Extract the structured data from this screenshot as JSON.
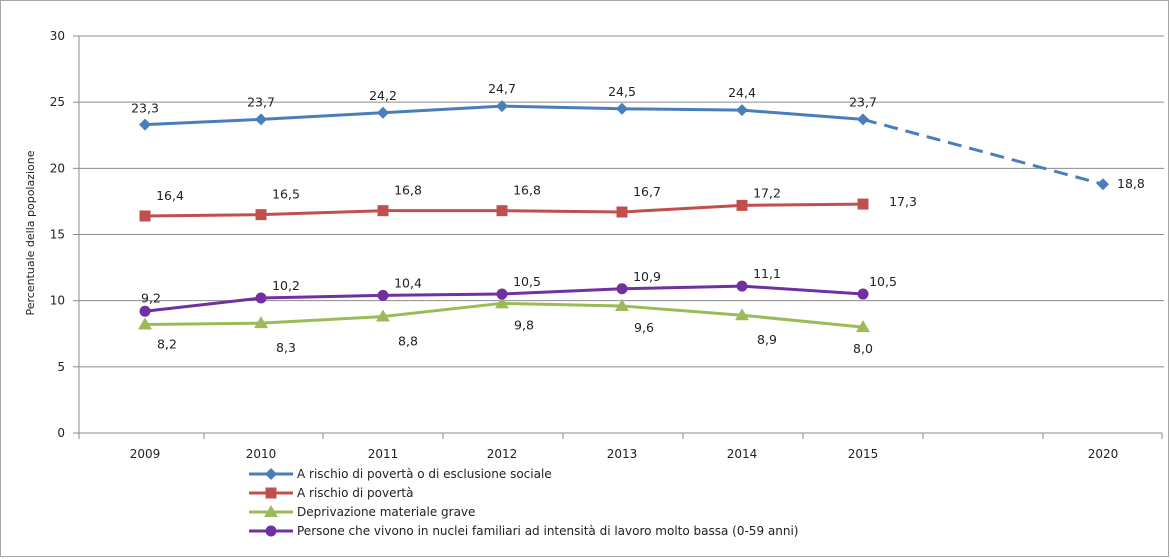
{
  "chart_data": {
    "type": "line",
    "title": "",
    "xlabel": "",
    "ylabel": "Percentuale della popolazione",
    "ylim": [
      0,
      30
    ],
    "yticks": [
      0,
      5,
      10,
      15,
      20,
      25,
      30
    ],
    "categories": [
      "2009",
      "2010",
      "2011",
      "2012",
      "2013",
      "2014",
      "2015",
      "2020"
    ],
    "grid": "horizontal",
    "legend_position": "bottom-left",
    "series": [
      {
        "name": "A rischio di povertà o di esclusione sociale",
        "color": "#4a7ebb",
        "marker": "diamond",
        "values": [
          23.3,
          23.7,
          24.2,
          24.7,
          24.5,
          24.4,
          23.7,
          null
        ],
        "labels": [
          "23,3",
          "23,7",
          "24,2",
          "24,7",
          "24,5",
          "24,4",
          "23,7",
          null
        ],
        "target": {
          "category": "2020",
          "value": 18.8,
          "label": "18,8",
          "line": "dashed"
        }
      },
      {
        "name": "A rischio di povertà",
        "color": "#c0504d",
        "marker": "square",
        "values": [
          16.4,
          16.5,
          16.8,
          16.8,
          16.7,
          17.2,
          17.3,
          null
        ],
        "labels": [
          "16,4",
          "16,5",
          "16,8",
          "16,8",
          "16,7",
          "17,2",
          "17,3",
          null
        ]
      },
      {
        "name": "Deprivazione materiale grave",
        "color": "#9bbb59",
        "marker": "triangle",
        "values": [
          8.2,
          8.3,
          8.8,
          9.8,
          9.6,
          8.9,
          8.0,
          null
        ],
        "labels": [
          "8,2",
          "8,3",
          "8,8",
          "9,8",
          "9,6",
          "8,9",
          "8,0",
          null
        ]
      },
      {
        "name": "Persone che vivono in nuclei familiari ad intensità di lavoro molto bassa (0-59 anni)",
        "color": "#7030a0",
        "marker": "circle",
        "values": [
          9.2,
          10.2,
          10.4,
          10.5,
          10.9,
          11.1,
          10.5,
          null
        ],
        "labels": [
          "9,2",
          "10,2",
          "10,4",
          "10,5",
          "10,9",
          "11,1",
          "10,5",
          null
        ]
      }
    ]
  }
}
